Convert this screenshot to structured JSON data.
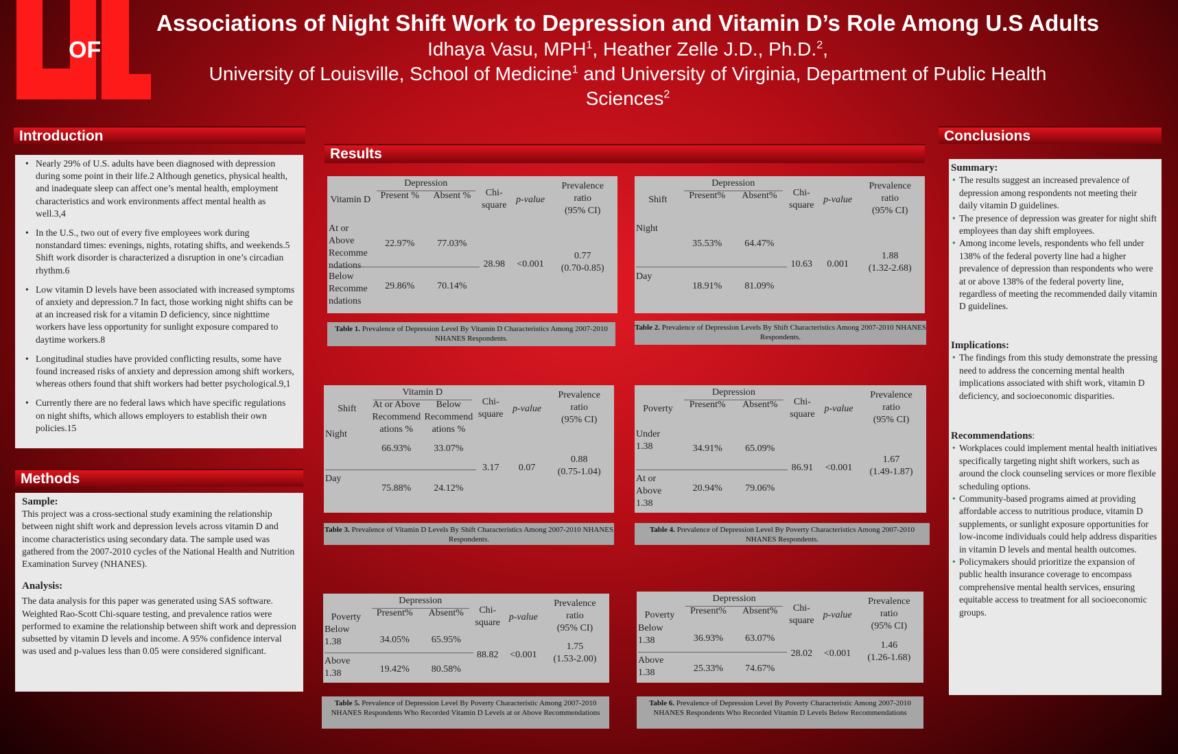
{
  "header": {
    "logo_text": "UofL",
    "title": "Associations of Night Shift Work to Depression and Vitamin D’s Role Among U.S Adults",
    "authors": "Idhaya Vasu, MPH",
    "authors2": ", Heather Zelle J.D., Ph.D.",
    "affiliation_a": "University of Louisville, School of Medicine",
    "affiliation_b": " and University of Virginia, Department of Public Health",
    "affiliation_c": "Sciences",
    "sup1": "1",
    "sup2": "2"
  },
  "introduction": {
    "heading": "Introduction",
    "bullets": [
      "Nearly 29% of U.S. adults have been diagnosed with depression during some point in their life.2 Although genetics, physical health, and inadequate sleep can affect one’s mental health, employment characteristics and work environments affect mental health as well.3,4",
      "In the U.S., two out of every five employees work during nonstandard times: evenings, nights, rotating shifts, and weekends.5 Shift work disorder is characterized a disruption in one’s circadian rhythm.6",
      "Low vitamin D levels have been associated with increased symptoms of anxiety and depression.7 In fact, those working night shifts can be at an increased risk for a vitamin D deficiency, since nighttime workers have less opportunity for sunlight exposure compared to daytime workers.8",
      "Longitudinal studies have provided conflicting results, some have found increased risks of anxiety and depression among shift workers, whereas others found that shift workers had better psychological.9,1",
      "Currently there are no federal laws which have specific regulations on night shifts, which allows employers to establish their own policies.15"
    ]
  },
  "methods": {
    "heading": "Methods",
    "sample_label": "Sample:",
    "sample_text": "This project was a cross-sectional study examining the relationship between night shift work and depression levels across vitamin D and income characteristics using secondary data. The sample used was gathered from the 2007-2010 cycles of the National Health and Nutrition Examination Survey (NHANES).",
    "analysis_label": "Analysis:",
    "analysis_text": "The data analysis for this paper was generated using SAS software. Weighted Rao-Scott Chi-square testing, and prevalence ratios were performed to examine the relationship between shift work and depression subsetted by vitamin D levels and income. A 95% confidence interval was used and p-values less than 0.05 were considered significant."
  },
  "results": {
    "heading": "Results",
    "t1": {
      "h_group": "Depression",
      "h_row": "Vitamin D",
      "h_present": "Present %",
      "h_absent": "Absent %",
      "h_chi": "Chi-\nsquare",
      "h_p": "p-value",
      "h_pr": "Prevalence\nratio\n(95% CI)",
      "r1_label": "At or\nAbove\nRecomme\nndations",
      "r1_present": "22.97%",
      "r1_absent": "77.03%",
      "r2_label": "Below\nRecomme\nndations",
      "r2_present": "29.86%",
      "r2_absent": "70.14%",
      "chi": "28.98",
      "p": "<0.001",
      "pr": "0.77\n(0.70-0.85)",
      "cap_bold": "Table 1.",
      "cap": " Prevalence of Depression Level By Vitamin D Characteristics Among 2007-2010 NHANES Respondents."
    },
    "t2": {
      "h_group": "Depression",
      "h_row": "Shift",
      "h_present": "Present%",
      "h_absent": "Absent%",
      "h_chi": "Chi-\nsquare",
      "h_p": "p-value",
      "h_pr": "Prevalence\nratio\n(95% CI)",
      "r1_label": "Night",
      "r1_present": "35.53%",
      "r1_absent": "64.47%",
      "r2_label": "Day",
      "r2_present": "18.91%",
      "r2_absent": "81.09%",
      "chi": "10.63",
      "p": "0.001",
      "pr": "1.88\n(1.32-2.68)",
      "cap_bold": "Table 2.",
      "cap": " Prevalence of Depression Levels By Shift Characteristics Among 2007-2010 NHANES Respondents."
    },
    "t3": {
      "h_group": "Vitamin D",
      "h_row": "Shift",
      "h_present": "At or Above\nRecommend\nations %",
      "h_absent": "Below\nRecommend\nations %",
      "h_chi": "Chi-\nsquare",
      "h_p": "p-value",
      "h_pr": "Prevalence\nratio\n(95% CI)",
      "r1_label": "Night",
      "r1_present": "66.93%",
      "r1_absent": "33.07%",
      "r2_label": "Day",
      "r2_present": "75.88%",
      "r2_absent": "24.12%",
      "chi": "3.17",
      "p": "0.07",
      "pr": "0.88\n(0.75-1.04)",
      "cap_bold": "Table 3.",
      "cap": " Prevalence of Vitamin D Levels By Shift Characteristics Among 2007-2010 NHANES Respondents."
    },
    "t4": {
      "h_group": "Depression",
      "h_row": "Poverty",
      "h_present": "Present%",
      "h_absent": "Absent%",
      "h_chi": "Chi-\nsquare",
      "h_p": "p-value",
      "h_pr": "Prevalence\nratio\n(95% CI)",
      "r1_label": "Under\n1.38",
      "r1_present": "34.91%",
      "r1_absent": "65.09%",
      "r2_label": "At or\nAbove\n1.38",
      "r2_present": "20.94%",
      "r2_absent": "79.06%",
      "chi": "86.91",
      "p": "<0.001",
      "pr": "1.67\n(1.49-1.87)",
      "cap_bold": "Table 4.",
      "cap": " Prevalence of Depression Level By Poverty Characteristics Among 2007-2010 NHANES Respondents."
    },
    "t5": {
      "h_group": "Depression",
      "h_row": "Poverty",
      "h_present": "Present%",
      "h_absent": "Absent%",
      "h_chi": "Chi-\nsquare",
      "h_p": "p-value",
      "h_pr": "Prevalence\nratio\n(95% CI)",
      "r1_label": "Below\n1.38",
      "r1_present": "34.05%",
      "r1_absent": "65.95%",
      "r2_label": "Above\n1.38",
      "r2_present": "19.42%",
      "r2_absent": "80.58%",
      "chi": "88.82",
      "p": "<0.001",
      "pr": "1.75\n(1.53-2.00)",
      "cap_bold": "Table 5.",
      "cap": " Prevalence of Depression Level By Poverty Characteristic Among 2007-2010 NHANES Respondents Who Recorded Vitamin D Levels at or Above Recommendations"
    },
    "t6": {
      "h_group": "Depression",
      "h_row": "Poverty",
      "h_present": "Present%",
      "h_absent": "Absent%",
      "h_chi": "Chi-\nsquare",
      "h_p": "p-value",
      "h_pr": "Prevalence\nratio\n(95% CI)",
      "r1_label": "Below\n1.38",
      "r1_present": "36.93%",
      "r1_absent": "63.07%",
      "r2_label": "Above\n1.38",
      "r2_present": "25.33%",
      "r2_absent": "74.67%",
      "chi": "28.02",
      "p": "<0.001",
      "pr": "1.46\n(1.26-1.68)",
      "cap_bold": "Table 6.",
      "cap": " Prevalence of Depression Level By Poverty Characteristic Among 2007-2010 NHANES Respondents Who Recorded Vitamin D Levels Below Recommendations"
    }
  },
  "conclusions": {
    "heading": "Conclusions",
    "summary_label": "Summary:",
    "summary": [
      "The results suggest an increased prevalence of depression among respondents not meeting their daily vitamin D guidelines.",
      " The presence of depression was greater for night shift employees than day shift employees.",
      "Among income levels, respondents who fell under 138% of the federal poverty line had a higher prevalence of depression than respondents who were at or above 138% of the federal poverty line, regardless of meeting the recommended daily vitamin D guidelines."
    ],
    "implications_label": "Implications:",
    "implications": [
      "The findings from this study demonstrate the pressing need to address the concerning mental health implications associated with shift work, vitamin D deficiency, and socioeconomic disparities."
    ],
    "recommendations_label": "Recommendations",
    "recommendations": [
      " Workplaces could implement mental health initiatives specifically targeting night shift workers, such as around the clock counseling services or more flexible scheduling options.",
      "Community-based programs aimed at providing affordable access to nutritious produce, vitamin D supplements, or sunlight exposure opportunities for low-income individuals could help address disparities in vitamin D levels and mental health outcomes.",
      "Policymakers should prioritize the expansion of public health insurance coverage to encompass comprehensive mental health services, ensuring equitable access to treatment for all socioeconomic groups."
    ]
  }
}
